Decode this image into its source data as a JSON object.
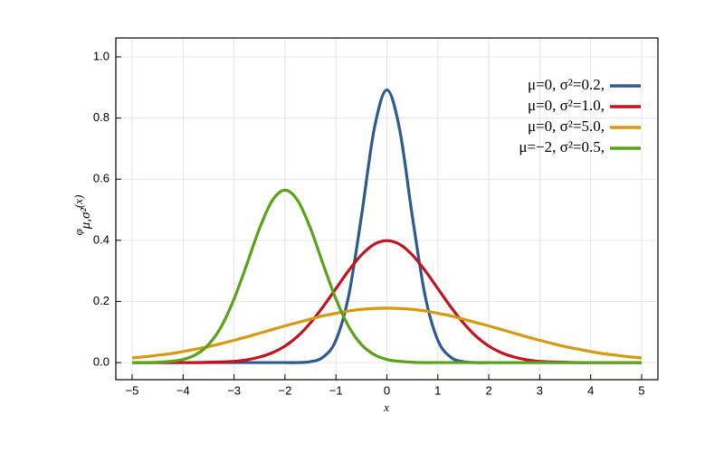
{
  "chart_data": {
    "type": "line",
    "xlabel": "x",
    "ylabel": {
      "symbol": "φ",
      "subscript": "μ,σ²",
      "argument": "(x)"
    },
    "x": [
      -5,
      -4.75,
      -4.5,
      -4.25,
      -4,
      -3.75,
      -3.5,
      -3.25,
      -3,
      -2.75,
      -2.5,
      -2.25,
      -2,
      -1.75,
      -1.5,
      -1.25,
      -1,
      -0.75,
      -0.5,
      -0.25,
      0,
      0.25,
      0.5,
      0.75,
      1,
      1.25,
      1.5,
      1.75,
      2,
      2.25,
      2.5,
      2.75,
      3,
      3.25,
      3.5,
      3.75,
      4,
      4.25,
      4.5,
      4.75,
      5
    ],
    "series": [
      {
        "name": "μ=0,   σ²=0.2,",
        "color": "#2e5a93",
        "values": [
          0,
          0,
          0,
          0,
          0,
          0,
          0,
          0,
          0,
          0,
          0,
          0,
          0,
          0,
          0.003,
          0.018,
          0.073,
          0.219,
          0.478,
          0.763,
          0.892,
          0.763,
          0.478,
          0.219,
          0.073,
          0.018,
          0.003,
          0,
          0,
          0,
          0,
          0,
          0,
          0,
          0,
          0,
          0,
          0,
          0,
          0,
          0
        ]
      },
      {
        "name": "μ=0,   σ²=1.0,",
        "color": "#c4121f",
        "values": [
          0,
          0,
          0,
          0,
          0,
          0,
          0.001,
          0.002,
          0.004,
          0.009,
          0.018,
          0.032,
          0.054,
          0.086,
          0.13,
          0.183,
          0.242,
          0.301,
          0.352,
          0.387,
          0.399,
          0.387,
          0.352,
          0.301,
          0.242,
          0.183,
          0.13,
          0.086,
          0.054,
          0.032,
          0.018,
          0.009,
          0.004,
          0.002,
          0.001,
          0,
          0,
          0,
          0,
          0,
          0
        ]
      },
      {
        "name": "μ=0,   σ²=5.0,",
        "color": "#d69a10",
        "values": [
          0.015,
          0.019,
          0.024,
          0.029,
          0.036,
          0.044,
          0.052,
          0.062,
          0.073,
          0.084,
          0.096,
          0.108,
          0.12,
          0.131,
          0.142,
          0.153,
          0.161,
          0.169,
          0.174,
          0.177,
          0.178,
          0.177,
          0.174,
          0.169,
          0.161,
          0.153,
          0.142,
          0.131,
          0.12,
          0.108,
          0.096,
          0.084,
          0.073,
          0.062,
          0.052,
          0.044,
          0.036,
          0.029,
          0.024,
          0.019,
          0.015
        ]
      },
      {
        "name": "μ=−2, σ²=0.5,",
        "color": "#5aa21a",
        "values": [
          0,
          0,
          0.001,
          0.004,
          0.01,
          0.026,
          0.059,
          0.118,
          0.208,
          0.321,
          0.439,
          0.53,
          0.564,
          0.53,
          0.439,
          0.321,
          0.208,
          0.118,
          0.059,
          0.026,
          0.01,
          0.004,
          0.001,
          0,
          0,
          0,
          0,
          0,
          0,
          0,
          0,
          0,
          0,
          0,
          0,
          0,
          0,
          0,
          0,
          0,
          0
        ]
      }
    ],
    "xlim": [
      -5.32,
      5.32
    ],
    "ylim": [
      -0.056,
      1.062
    ],
    "xticks": [
      {
        "value": -5,
        "label": "−5"
      },
      {
        "value": -4,
        "label": "−4"
      },
      {
        "value": -3,
        "label": "−3"
      },
      {
        "value": -2,
        "label": "−2"
      },
      {
        "value": -1,
        "label": "−1"
      },
      0,
      1,
      2,
      3,
      4,
      5
    ],
    "yticks": [
      {
        "value": 0,
        "label": "0.0"
      },
      {
        "value": 0.2,
        "label": "0.2"
      },
      {
        "value": 0.4,
        "label": "0.4"
      },
      {
        "value": 0.6,
        "label": "0.6"
      },
      {
        "value": 0.8,
        "label": "0.8"
      },
      {
        "value": 1,
        "label": "1.0"
      }
    ],
    "grid": true,
    "legend": "upper right"
  }
}
